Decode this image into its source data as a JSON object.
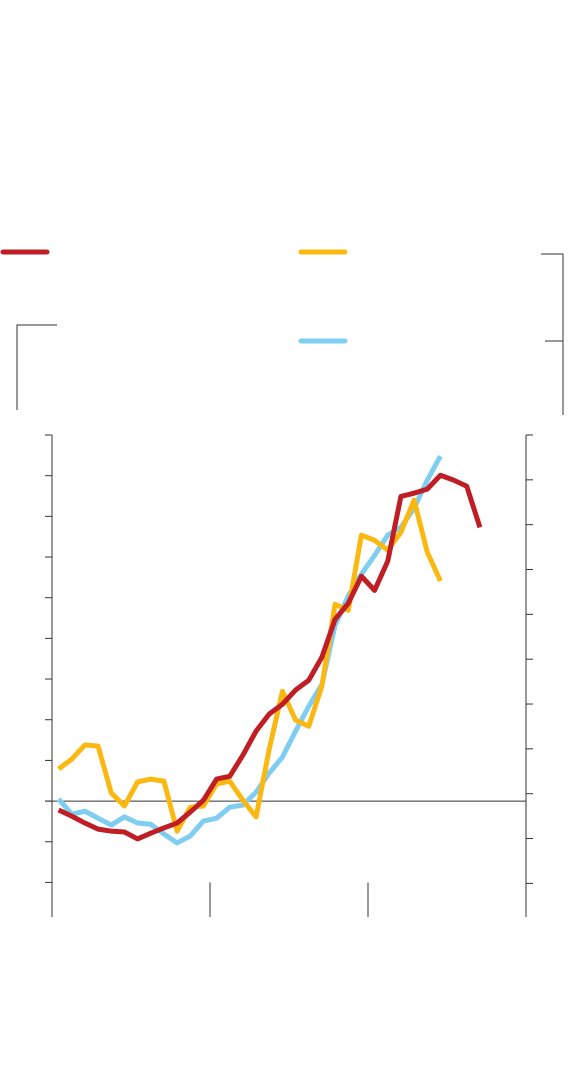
{
  "chart_data": {
    "type": "line",
    "x": [
      0.5,
      1.5,
      2.5,
      3.5,
      4.5,
      5.5,
      6.5,
      7.5,
      8.5,
      9.5,
      10.5,
      11.5,
      12.5,
      13.5,
      14.5,
      15.5,
      16.5,
      17.5,
      18.5,
      19.5,
      20.5,
      21.5,
      22.5,
      23.5,
      24.5,
      25.5,
      26.5,
      27.5,
      28.5,
      29.5,
      30.5,
      31.5,
      32.5
    ],
    "xlim": [
      0,
      36
    ],
    "xticks": [
      0,
      12,
      24,
      36
    ],
    "ylim": [
      -2.85,
      9
    ],
    "yticks": [
      -2,
      -1,
      0,
      1,
      2,
      3,
      4,
      5,
      6,
      7,
      8,
      9
    ],
    "y2lim": [
      -2.75,
      8
    ],
    "y2ticks": [
      -2,
      -1,
      0,
      1,
      2,
      3,
      4,
      5,
      6,
      7,
      8
    ],
    "series": [
      {
        "color": "#be1e24",
        "values": [
          -0.22,
          -0.37,
          -0.54,
          -0.69,
          -0.74,
          -0.76,
          -0.93,
          -0.79,
          -0.66,
          -0.54,
          -0.27,
          0.02,
          0.54,
          0.61,
          1.13,
          1.72,
          2.14,
          2.38,
          2.73,
          2.97,
          3.54,
          4.47,
          4.86,
          5.53,
          5.18,
          5.9,
          7.49,
          7.57,
          7.67,
          8.01,
          7.89,
          7.74,
          6.73
        ]
      },
      {
        "color": "#fbb811",
        "values": [
          0.79,
          1.03,
          1.38,
          1.35,
          0.2,
          -0.12,
          0.47,
          0.54,
          0.49,
          -0.74,
          -0.15,
          -0.12,
          0.42,
          0.49,
          0.02,
          -0.39,
          1.28,
          2.7,
          1.99,
          1.84,
          2.83,
          4.84,
          4.69,
          6.54,
          6.41,
          6.17,
          6.61,
          7.4,
          6.12,
          5.41,
          null,
          null,
          null
        ]
      },
      {
        "color": "#7fcdf1",
        "values": [
          0.05,
          -0.32,
          -0.25,
          -0.42,
          -0.59,
          -0.39,
          -0.54,
          -0.57,
          -0.81,
          -1.03,
          -0.86,
          -0.49,
          -0.42,
          -0.15,
          -0.1,
          0.22,
          0.69,
          1.08,
          1.72,
          2.33,
          2.87,
          4.32,
          5.04,
          5.58,
          6.04,
          6.54,
          6.73,
          7.2,
          7.89,
          8.48,
          null,
          null,
          null
        ]
      }
    ]
  }
}
